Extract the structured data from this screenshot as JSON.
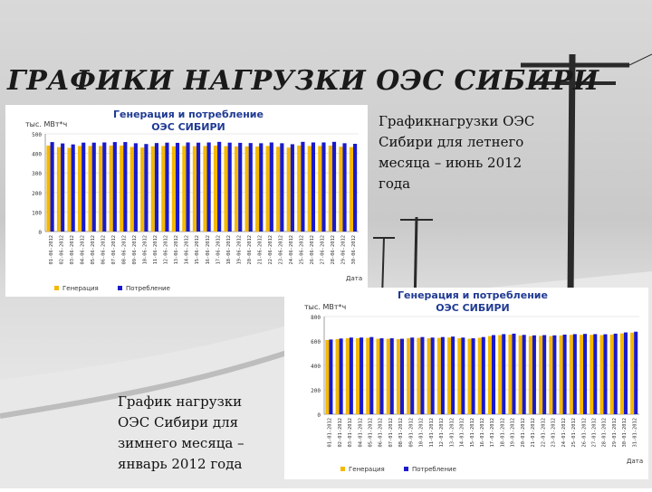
{
  "slide": {
    "title": "ГРАФИКИ НАГРУЗКИ ОЭС СИБИРИ",
    "caption_summer": "Графикнагрузки ОЭС Сибири для летнего месяца – июнь 2012 года",
    "caption_winter": "График нагрузки ОЭС Сибири для зимнего месяца – январь 2012 года"
  },
  "colors": {
    "generation": "#f5b800",
    "consumption": "#1a1acc",
    "title": "#1f3a93"
  },
  "chart_data": [
    {
      "type": "bar",
      "title": "Генерация и потребление ОЭС СИБИРИ",
      "ylabel": "тыс. МВт*ч",
      "xlabel": "Дата",
      "ylim": [
        0,
        500
      ],
      "yticks": [
        0,
        100,
        200,
        300,
        400,
        500
      ],
      "legend_position": "bottom",
      "categories": [
        "01-06-2012",
        "02-06-2012",
        "03-06-2012",
        "04-06-2012",
        "05-06-2012",
        "06-06-2012",
        "07-06-2012",
        "08-06-2012",
        "09-06-2012",
        "10-06-2012",
        "11-06-2012",
        "12-06-2012",
        "13-06-2012",
        "14-06-2012",
        "15-06-2012",
        "16-06-2012",
        "17-06-2012",
        "18-06-2012",
        "19-06-2012",
        "20-06-2012",
        "21-06-2012",
        "22-06-2012",
        "23-06-2012",
        "24-06-2012",
        "25-06-2012",
        "26-06-2012",
        "27-06-2012",
        "28-06-2012",
        "29-06-2012",
        "30-06-2012"
      ],
      "series": [
        {
          "name": "Генерация",
          "values": [
            440,
            432,
            428,
            438,
            438,
            438,
            440,
            440,
            433,
            430,
            436,
            438,
            436,
            438,
            437,
            438,
            440,
            437,
            436,
            436,
            435,
            438,
            434,
            430,
            440,
            438,
            438,
            440,
            434,
            432
          ]
        },
        {
          "name": "Потребление",
          "values": [
            458,
            451,
            446,
            455,
            455,
            456,
            458,
            458,
            452,
            448,
            453,
            455,
            454,
            456,
            455,
            456,
            459,
            455,
            454,
            453,
            452,
            456,
            452,
            447,
            459,
            456,
            456,
            459,
            452,
            449
          ]
        }
      ]
    },
    {
      "type": "bar",
      "title": "Генерация и потребление ОЭС СИБИРИ",
      "ylabel": "тыс. МВт*ч",
      "xlabel": "Дата",
      "ylim": [
        0,
        800
      ],
      "yticks": [
        0,
        200,
        400,
        600,
        800
      ],
      "legend_position": "bottom",
      "categories": [
        "01-01-2012",
        "02-01-2012",
        "03-01-2012",
        "04-01-2012",
        "05-01-2012",
        "06-01-2012",
        "07-01-2012",
        "08-01-2012",
        "09-01-2012",
        "10-01-2012",
        "11-01-2012",
        "12-01-2012",
        "13-01-2012",
        "14-01-2012",
        "15-01-2012",
        "16-01-2012",
        "17-01-2012",
        "18-01-2012",
        "19-01-2012",
        "20-01-2012",
        "21-01-2012",
        "22-01-2012",
        "23-01-2012",
        "24-01-2012",
        "25-01-2012",
        "26-01-2012",
        "27-01-2012",
        "28-01-2012",
        "29-01-2012",
        "30-01-2012",
        "31-01-2012"
      ],
      "series": [
        {
          "name": "Генерация",
          "values": [
            608,
            615,
            622,
            622,
            625,
            618,
            618,
            615,
            622,
            625,
            622,
            625,
            628,
            622,
            618,
            626,
            640,
            648,
            652,
            645,
            640,
            642,
            640,
            645,
            650,
            650,
            650,
            648,
            652,
            662,
            668
          ]
        },
        {
          "name": "Потребление",
          "values": [
            612,
            620,
            628,
            628,
            632,
            622,
            622,
            618,
            628,
            632,
            628,
            632,
            636,
            628,
            622,
            632,
            648,
            656,
            660,
            650,
            646,
            648,
            646,
            652,
            656,
            658,
            656,
            655,
            660,
            670,
            676
          ]
        }
      ]
    }
  ]
}
